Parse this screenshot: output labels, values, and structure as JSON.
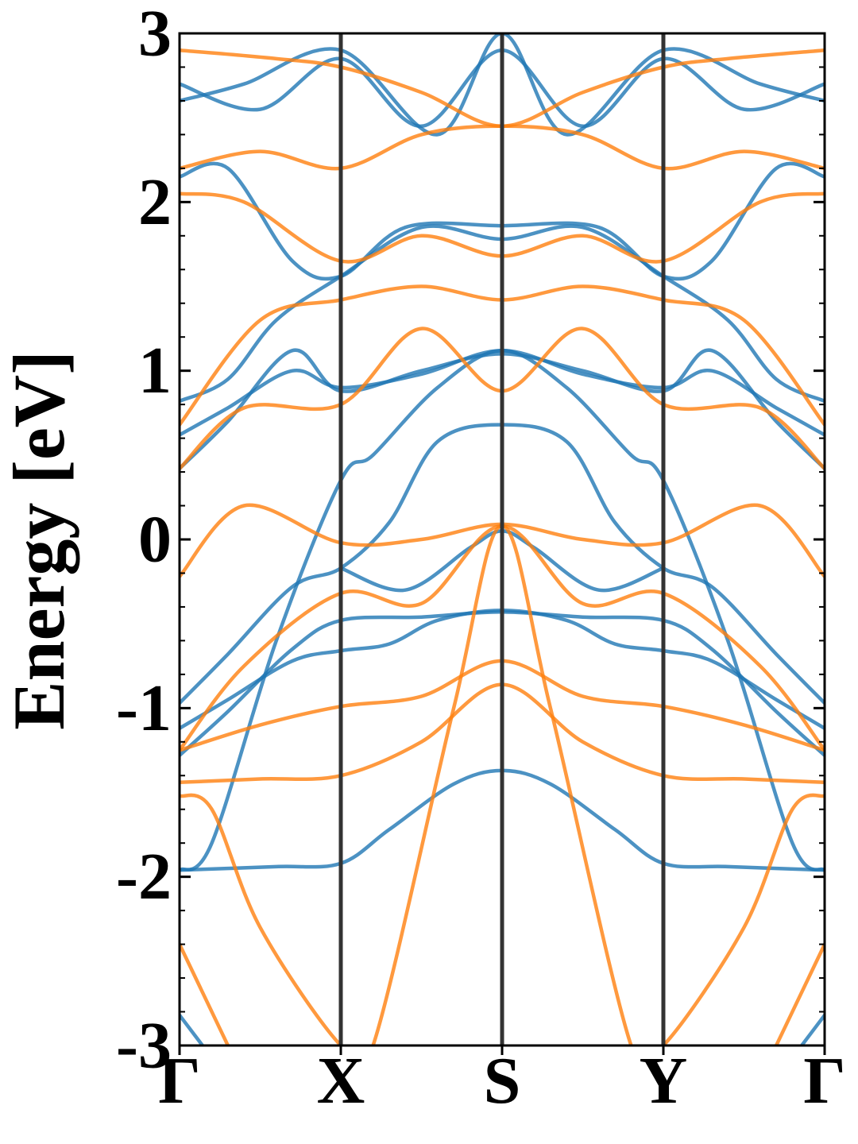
{
  "chart_data": {
    "type": "line",
    "title": "",
    "xlabel": "",
    "ylabel": "Energy [eV]",
    "ylim": [
      -3,
      3
    ],
    "y_major_ticks": [
      -3,
      -2,
      -1,
      0,
      1,
      2,
      3
    ],
    "y_tick_labels": [
      "-3",
      "-2",
      "-1",
      "0",
      "1",
      "2",
      "3"
    ],
    "x_ticks": [
      0,
      1,
      2,
      3,
      4
    ],
    "x_tick_labels": [
      "Γ",
      "X",
      "S",
      "Y",
      "Γ"
    ],
    "grid": false,
    "legend": "none",
    "colors": {
      "series_blue": "#1f77b4",
      "series_orange": "#ff7f0e",
      "high_symmetry_lines": "#333333",
      "axes": "#000000"
    },
    "series": [
      {
        "color": "#1f77b4",
        "bands": [
          [
            [
              0.0,
              -1.96
            ],
            [
              0.6,
              -1.94
            ],
            [
              1.0,
              -1.92
            ],
            [
              1.3,
              -1.72
            ],
            [
              1.7,
              -1.45
            ],
            [
              2.0,
              -1.37
            ],
            [
              2.3,
              -1.45
            ],
            [
              2.7,
              -1.72
            ],
            [
              3.0,
              -1.92
            ],
            [
              3.4,
              -1.94
            ],
            [
              4.0,
              -1.96
            ]
          ],
          [
            [
              0.0,
              -1.12
            ],
            [
              0.3,
              -0.95
            ],
            [
              0.7,
              -0.72
            ],
            [
              1.0,
              -0.66
            ],
            [
              1.3,
              -0.62
            ],
            [
              1.6,
              -0.48
            ],
            [
              2.0,
              -0.42
            ],
            [
              2.4,
              -0.48
            ],
            [
              2.7,
              -0.62
            ],
            [
              3.0,
              -0.66
            ],
            [
              3.3,
              -0.72
            ],
            [
              3.7,
              -0.95
            ],
            [
              4.0,
              -1.12
            ]
          ],
          [
            [
              0.0,
              -1.28
            ],
            [
              0.3,
              -1.02
            ],
            [
              0.7,
              -0.65
            ],
            [
              1.0,
              -0.48
            ],
            [
              1.5,
              -0.46
            ],
            [
              2.0,
              -0.43
            ],
            [
              2.5,
              -0.46
            ],
            [
              3.0,
              -0.48
            ],
            [
              3.3,
              -0.65
            ],
            [
              3.7,
              -1.02
            ],
            [
              4.0,
              -1.28
            ]
          ],
          [
            [
              0.0,
              -0.97
            ],
            [
              0.3,
              -0.68
            ],
            [
              0.7,
              -0.28
            ],
            [
              1.0,
              -0.17
            ],
            [
              1.3,
              0.1
            ],
            [
              1.6,
              0.58
            ],
            [
              2.0,
              0.68
            ],
            [
              2.4,
              0.58
            ],
            [
              2.7,
              0.1
            ],
            [
              3.0,
              -0.17
            ],
            [
              3.3,
              -0.28
            ],
            [
              3.7,
              -0.68
            ],
            [
              4.0,
              -0.97
            ]
          ],
          [
            [
              0.0,
              -1.96
            ],
            [
              0.2,
              -1.8
            ],
            [
              0.6,
              -0.6
            ],
            [
              1.0,
              0.35
            ],
            [
              1.2,
              0.5
            ],
            [
              1.6,
              0.9
            ],
            [
              2.0,
              1.12
            ],
            [
              2.4,
              0.9
            ],
            [
              2.8,
              0.5
            ],
            [
              3.0,
              0.35
            ],
            [
              3.4,
              -0.6
            ],
            [
              3.8,
              -1.8
            ],
            [
              4.0,
              -1.96
            ]
          ],
          [
            [
              0.0,
              0.42
            ],
            [
              0.3,
              0.7
            ],
            [
              0.7,
              1.12
            ],
            [
              1.0,
              0.88
            ],
            [
              1.5,
              1.0
            ],
            [
              2.0,
              1.1
            ],
            [
              2.5,
              1.0
            ],
            [
              3.0,
              0.88
            ],
            [
              3.3,
              1.12
            ],
            [
              3.7,
              0.7
            ],
            [
              4.0,
              0.42
            ]
          ],
          [
            [
              0.0,
              0.62
            ],
            [
              0.3,
              0.78
            ],
            [
              0.7,
              1.0
            ],
            [
              1.0,
              0.9
            ],
            [
              1.5,
              0.98
            ],
            [
              2.0,
              1.12
            ],
            [
              2.5,
              0.98
            ],
            [
              3.0,
              0.9
            ],
            [
              3.3,
              1.0
            ],
            [
              3.7,
              0.78
            ],
            [
              4.0,
              0.62
            ]
          ],
          [
            [
              0.0,
              0.82
            ],
            [
              0.3,
              0.95
            ],
            [
              0.6,
              1.3
            ],
            [
              1.0,
              1.56
            ],
            [
              1.5,
              1.85
            ],
            [
              2.0,
              1.78
            ],
            [
              2.5,
              1.85
            ],
            [
              3.0,
              1.56
            ],
            [
              3.4,
              1.3
            ],
            [
              3.7,
              0.95
            ],
            [
              4.0,
              0.82
            ]
          ],
          [
            [
              0.0,
              2.15
            ],
            [
              0.3,
              2.2
            ],
            [
              0.7,
              1.65
            ],
            [
              1.0,
              1.56
            ],
            [
              1.4,
              1.85
            ],
            [
              2.0,
              1.86
            ],
            [
              2.6,
              1.85
            ],
            [
              3.0,
              1.56
            ],
            [
              3.3,
              1.65
            ],
            [
              3.7,
              2.2
            ],
            [
              4.0,
              2.15
            ]
          ],
          [
            [
              0.0,
              2.7
            ],
            [
              0.5,
              2.55
            ],
            [
              1.0,
              2.85
            ],
            [
              1.5,
              2.45
            ],
            [
              2.0,
              2.9
            ],
            [
              2.5,
              2.45
            ],
            [
              3.0,
              2.85
            ],
            [
              3.5,
              2.55
            ],
            [
              4.0,
              2.7
            ]
          ],
          [
            [
              0.0,
              2.6
            ],
            [
              0.4,
              2.7
            ],
            [
              1.0,
              2.9
            ],
            [
              1.6,
              2.4
            ],
            [
              2.0,
              3.0
            ],
            [
              2.4,
              2.4
            ],
            [
              3.0,
              2.9
            ],
            [
              3.6,
              2.7
            ],
            [
              4.0,
              2.6
            ]
          ],
          [
            [
              1.0,
              -0.17
            ],
            [
              1.4,
              -0.3
            ],
            [
              1.8,
              -0.05
            ],
            [
              2.0,
              0.05
            ],
            [
              2.2,
              -0.05
            ],
            [
              2.6,
              -0.3
            ],
            [
              3.0,
              -0.17
            ]
          ],
          [
            [
              0.0,
              -2.82
            ],
            [
              0.3,
              -3.2
            ]
          ],
          [
            [
              3.7,
              -3.2
            ],
            [
              4.0,
              -2.82
            ]
          ]
        ]
      },
      {
        "color": "#ff7f0e",
        "bands": [
          [
            [
              0.0,
              -1.44
            ],
            [
              0.5,
              -1.42
            ],
            [
              1.0,
              -1.4
            ],
            [
              1.5,
              -1.2
            ],
            [
              2.0,
              -0.86
            ],
            [
              2.5,
              -1.2
            ],
            [
              3.0,
              -1.4
            ],
            [
              3.5,
              -1.42
            ],
            [
              4.0,
              -1.44
            ]
          ],
          [
            [
              0.0,
              -1.25
            ],
            [
              0.5,
              -1.1
            ],
            [
              1.0,
              -0.99
            ],
            [
              1.5,
              -0.93
            ],
            [
              2.0,
              -0.72
            ],
            [
              2.5,
              -0.93
            ],
            [
              3.0,
              -0.99
            ],
            [
              3.5,
              -1.1
            ],
            [
              4.0,
              -1.25
            ]
          ],
          [
            [
              0.0,
              -1.25
            ],
            [
              0.4,
              -0.75
            ],
            [
              1.0,
              -0.32
            ],
            [
              1.5,
              -0.38
            ],
            [
              2.0,
              0.08
            ],
            [
              2.5,
              -0.38
            ],
            [
              3.0,
              -0.32
            ],
            [
              3.6,
              -0.75
            ],
            [
              4.0,
              -1.25
            ]
          ],
          [
            [
              0.0,
              -0.22
            ],
            [
              0.4,
              0.2
            ],
            [
              1.0,
              -0.02
            ],
            [
              1.5,
              0.0
            ],
            [
              2.0,
              0.09
            ],
            [
              2.5,
              0.0
            ],
            [
              3.0,
              -0.02
            ],
            [
              3.6,
              0.2
            ],
            [
              4.0,
              -0.22
            ]
          ],
          [
            [
              0.0,
              -1.52
            ],
            [
              0.2,
              -1.6
            ],
            [
              0.5,
              -2.3
            ],
            [
              1.0,
              -3.0
            ],
            [
              1.2,
              -3.0
            ],
            [
              1.7,
              -1.0
            ],
            [
              2.0,
              0.08
            ],
            [
              2.3,
              -1.0
            ],
            [
              2.8,
              -3.0
            ],
            [
              3.0,
              -3.0
            ],
            [
              3.5,
              -2.3
            ],
            [
              3.8,
              -1.6
            ],
            [
              4.0,
              -1.52
            ]
          ],
          [
            [
              0.0,
              0.42
            ],
            [
              0.4,
              0.78
            ],
            [
              1.0,
              0.8
            ],
            [
              1.5,
              1.25
            ],
            [
              2.0,
              0.88
            ],
            [
              2.5,
              1.25
            ],
            [
              3.0,
              0.8
            ],
            [
              3.6,
              0.78
            ],
            [
              4.0,
              0.42
            ]
          ],
          [
            [
              0.0,
              0.68
            ],
            [
              0.5,
              1.3
            ],
            [
              1.0,
              1.42
            ],
            [
              1.5,
              1.5
            ],
            [
              2.0,
              1.42
            ],
            [
              2.5,
              1.5
            ],
            [
              3.0,
              1.42
            ],
            [
              3.5,
              1.3
            ],
            [
              4.0,
              0.68
            ]
          ],
          [
            [
              0.0,
              2.05
            ],
            [
              0.4,
              2.0
            ],
            [
              1.0,
              1.65
            ],
            [
              1.5,
              1.8
            ],
            [
              2.0,
              1.68
            ],
            [
              2.5,
              1.8
            ],
            [
              3.0,
              1.65
            ],
            [
              3.6,
              2.0
            ],
            [
              4.0,
              2.05
            ]
          ],
          [
            [
              0.0,
              2.2
            ],
            [
              0.5,
              2.3
            ],
            [
              1.0,
              2.2
            ],
            [
              1.5,
              2.4
            ],
            [
              2.0,
              2.45
            ],
            [
              2.5,
              2.4
            ],
            [
              3.0,
              2.2
            ],
            [
              3.5,
              2.3
            ],
            [
              4.0,
              2.2
            ]
          ],
          [
            [
              0.0,
              2.9
            ],
            [
              0.6,
              2.85
            ],
            [
              1.0,
              2.8
            ],
            [
              1.5,
              2.65
            ],
            [
              2.0,
              2.45
            ],
            [
              2.5,
              2.65
            ],
            [
              3.0,
              2.8
            ],
            [
              3.4,
              2.85
            ],
            [
              4.0,
              2.9
            ]
          ],
          [
            [
              0.0,
              -2.4
            ],
            [
              0.4,
              -3.2
            ]
          ],
          [
            [
              3.6,
              -3.2
            ],
            [
              4.0,
              -2.4
            ]
          ]
        ]
      }
    ]
  }
}
